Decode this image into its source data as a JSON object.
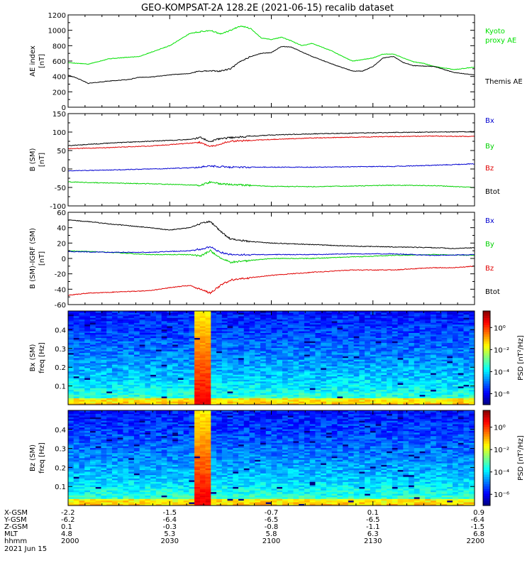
{
  "title": "GEO-KOMPSAT-2A 128.2E (2021-06-15) recalib dataset",
  "colors": {
    "black": "#000000",
    "red": "#e00000",
    "green": "#00d000",
    "blue": "#0000d0",
    "kyoto": "#00e000"
  },
  "chart_data": [
    {
      "type": "line",
      "id": "ae",
      "ylabel_lines": [
        "AE index",
        "[nT]"
      ],
      "ylim": [
        0,
        1200
      ],
      "yticks": [
        0,
        200,
        400,
        600,
        800,
        1000,
        1200
      ],
      "series": [
        {
          "name": "Kyoto proxy AE",
          "color": "#00e000",
          "x": [
            0,
            10,
            20,
            35,
            50,
            60,
            70,
            75,
            80,
            85,
            90,
            95,
            100,
            105,
            110,
            115,
            120,
            130,
            135,
            140,
            150,
            155,
            160,
            170,
            175,
            180,
            190,
            200
          ],
          "y": [
            580,
            560,
            630,
            660,
            800,
            960,
            1000,
            950,
            1000,
            1060,
            1020,
            900,
            880,
            910,
            860,
            800,
            830,
            730,
            660,
            600,
            640,
            690,
            690,
            590,
            570,
            530,
            490,
            520
          ]
        },
        {
          "name": "Themis AE",
          "color": "#000000",
          "x": [
            0,
            5,
            10,
            20,
            30,
            35,
            40,
            50,
            60,
            65,
            70,
            75,
            80,
            85,
            90,
            95,
            100,
            105,
            110,
            120,
            130,
            140,
            145,
            150,
            155,
            160,
            165,
            170,
            180,
            190,
            200
          ],
          "y": [
            420,
            370,
            310,
            340,
            360,
            390,
            390,
            420,
            440,
            470,
            470,
            470,
            500,
            600,
            660,
            700,
            710,
            790,
            780,
            660,
            560,
            470,
            470,
            530,
            640,
            660,
            580,
            540,
            530,
            450,
            420
          ]
        }
      ],
      "legend": [
        {
          "lines": [
            "Kyoto",
            "proxy AE"
          ],
          "color": "#00e000"
        },
        {
          "lines": [
            "Themis AE"
          ],
          "color": "#000000"
        }
      ]
    },
    {
      "type": "line",
      "id": "bgsm",
      "ylabel_lines": [
        "B (SM)",
        "[nT]"
      ],
      "ylim": [
        -100,
        150
      ],
      "yticks": [
        -100,
        -50,
        0,
        50,
        100,
        150
      ],
      "series": [
        {
          "name": "Bx",
          "color": "#000000",
          "x": [
            0,
            20,
            40,
            60,
            65,
            70,
            75,
            80,
            100,
            120,
            140,
            160,
            180,
            200
          ],
          "y": [
            63,
            70,
            75,
            80,
            85,
            75,
            82,
            85,
            92,
            95,
            97,
            99,
            100,
            101
          ]
        },
        {
          "name": "By",
          "color": "#e00000",
          "x": [
            0,
            20,
            40,
            60,
            65,
            70,
            75,
            80,
            100,
            120,
            140,
            160,
            180,
            200
          ],
          "y": [
            55,
            58,
            62,
            70,
            72,
            60,
            68,
            75,
            80,
            84,
            86,
            88,
            89,
            88
          ]
        },
        {
          "name": "Bz",
          "color": "#0000d0",
          "x": [
            0,
            20,
            40,
            60,
            70,
            80,
            100,
            120,
            140,
            160,
            180,
            200
          ],
          "y": [
            -5,
            -3,
            0,
            3,
            8,
            5,
            5,
            5,
            6,
            7,
            10,
            14
          ]
        },
        {
          "name": "Btot",
          "color": "#00d000",
          "x": [
            0,
            20,
            40,
            60,
            65,
            70,
            75,
            80,
            100,
            120,
            140,
            160,
            180,
            200
          ],
          "y": [
            -35,
            -38,
            -40,
            -43,
            -45,
            -35,
            -40,
            -42,
            -47,
            -48,
            -46,
            -44,
            -45,
            -50
          ]
        }
      ],
      "legend": [
        {
          "lines": [
            "Bx"
          ],
          "color": "#0000d0"
        },
        {
          "lines": [
            "By"
          ],
          "color": "#00d000"
        },
        {
          "lines": [
            "Bz"
          ],
          "color": "#e00000"
        },
        {
          "lines": [
            "Btot"
          ],
          "color": "#000000"
        }
      ]
    },
    {
      "type": "line",
      "id": "bresid",
      "ylabel_lines": [
        "B (SM)-IGRF (SM)",
        "[nT]"
      ],
      "ylim": [
        -60,
        60
      ],
      "yticks": [
        -60,
        -40,
        -20,
        0,
        20,
        40,
        60
      ],
      "series": [
        {
          "name": "Bx",
          "color": "#000000",
          "x": [
            0,
            10,
            20,
            40,
            50,
            60,
            65,
            70,
            75,
            80,
            90,
            100,
            120,
            140,
            160,
            180,
            190,
            200
          ],
          "y": [
            50,
            48,
            45,
            40,
            37,
            40,
            45,
            48,
            35,
            25,
            22,
            20,
            18,
            16,
            15,
            14,
            13,
            14
          ]
        },
        {
          "name": "By",
          "color": "#00d000",
          "x": [
            0,
            20,
            40,
            60,
            65,
            70,
            75,
            80,
            100,
            120,
            140,
            160,
            180,
            200
          ],
          "y": [
            10,
            8,
            5,
            5,
            3,
            10,
            0,
            -5,
            0,
            0,
            2,
            4,
            5,
            4
          ]
        },
        {
          "name": "Bz",
          "color": "#0000d0",
          "x": [
            0,
            20,
            40,
            60,
            65,
            70,
            75,
            80,
            100,
            120,
            140,
            160,
            180,
            200
          ],
          "y": [
            9,
            8,
            8,
            10,
            12,
            15,
            8,
            5,
            5,
            5,
            6,
            6,
            4,
            5
          ]
        },
        {
          "name": "Btot",
          "color": "#e00000",
          "x": [
            0,
            10,
            20,
            40,
            50,
            60,
            65,
            70,
            75,
            80,
            100,
            120,
            140,
            160,
            180,
            190,
            200
          ],
          "y": [
            -48,
            -45,
            -44,
            -42,
            -38,
            -35,
            -40,
            -45,
            -35,
            -28,
            -22,
            -18,
            -15,
            -15,
            -12,
            -12,
            -10
          ]
        }
      ],
      "legend": [
        {
          "lines": [
            "Bx"
          ],
          "color": "#0000d0"
        },
        {
          "lines": [
            "By"
          ],
          "color": "#00d000"
        },
        {
          "lines": [
            "Bz"
          ],
          "color": "#e00000"
        },
        {
          "lines": [
            "Btot"
          ],
          "color": "#000000"
        }
      ]
    },
    {
      "type": "heatmap",
      "id": "specbx",
      "ylabel_lines": [
        "Bx (SM)",
        "freq [Hz]"
      ],
      "ylim": [
        0,
        0.5
      ],
      "yticks": [
        0.1,
        0.2,
        0.3,
        0.4
      ],
      "ytick_labels": [
        "0.1",
        "0.2",
        "0.3",
        "0.4"
      ],
      "colorbar": {
        "label": "PSD [nT²/Hz]",
        "tick_labels": [
          "10⁰",
          "10⁻²",
          "10⁻⁴",
          "10⁻⁶"
        ],
        "tick_exponents": [
          0,
          -2,
          -4,
          -6
        ],
        "range_log": [
          -7,
          1.5
        ]
      }
    },
    {
      "type": "heatmap",
      "id": "specbz",
      "ylabel_lines": [
        "Bz (SM)",
        "freq [Hz]"
      ],
      "ylim": [
        0,
        0.5
      ],
      "yticks": [
        0.1,
        0.2,
        0.3,
        0.4
      ],
      "ytick_labels": [
        "0.1",
        "0.2",
        "0.3",
        "0.4"
      ],
      "colorbar": {
        "label": "PSD [nT²/Hz]",
        "tick_labels": [
          "10⁰",
          "10⁻²",
          "10⁻⁴",
          "10⁻⁶"
        ],
        "tick_exponents": [
          0,
          -2,
          -4,
          -6
        ],
        "range_log": [
          -7,
          1.5
        ]
      }
    }
  ],
  "time_axis": {
    "xlim": [
      0,
      120
    ],
    "tick_minutes": [
      0,
      30,
      60,
      90,
      120
    ],
    "rows": [
      {
        "label": "X-GSM",
        "values": [
          "-2.2",
          "-1.5",
          "-0.7",
          "0.1",
          "0.9"
        ]
      },
      {
        "label": "Y-GSM",
        "values": [
          "-6.2",
          "-6.4",
          "-6.5",
          "-6.5",
          "-6.4"
        ]
      },
      {
        "label": "Z-GSM",
        "values": [
          "0.1",
          "-0.3",
          "-0.8",
          "-1.1",
          "-1.5"
        ]
      },
      {
        "label": "MLT",
        "values": [
          "4.8",
          "5.3",
          "5.8",
          "6.3",
          "6.8"
        ]
      },
      {
        "label": "hhmm",
        "values": [
          "2000",
          "2030",
          "2100",
          "2130",
          "2200"
        ]
      }
    ],
    "date": "2021 Jun 15"
  }
}
